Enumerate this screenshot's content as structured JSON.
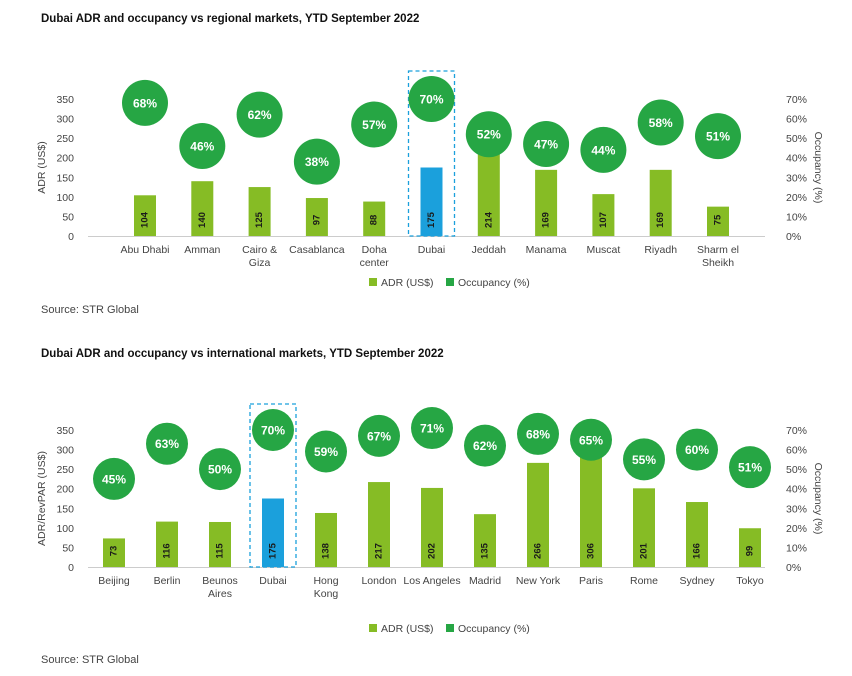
{
  "colors": {
    "adr": "#86bc25",
    "dubai": "#1ba0dc",
    "occupancy": "#26a644",
    "highlight_box": "#1ba0dc",
    "baseline": "#cccccc"
  },
  "legend": {
    "adr": "ADR (US$)",
    "occupancy": "Occupancy (%)"
  },
  "chart_data": [
    {
      "type": "bar",
      "title": "Dubai ADR and occupancy vs regional markets, YTD September 2022",
      "source": "Source: STR Global",
      "ylabel": "ADR (US$)",
      "y2label": "Occupancy (%)",
      "ylim": [
        0,
        350
      ],
      "yticks": [
        "0",
        "50",
        "100",
        "150",
        "200",
        "250",
        "300",
        "350"
      ],
      "y2lim": [
        0,
        70
      ],
      "y2ticks": [
        "0%",
        "10%",
        "20%",
        "30%",
        "40%",
        "50%",
        "60%",
        "70%"
      ],
      "highlight": "Dubai",
      "categories": [
        "Abu Dhabi",
        "Amman",
        "Cairo & Giza",
        "Casablanca",
        "Doha center",
        "Dubai",
        "Jeddah",
        "Manama",
        "Muscat",
        "Riyadh",
        "Sharm el Sheikh"
      ],
      "category_lines": [
        [
          "Abu Dhabi"
        ],
        [
          "Amman"
        ],
        [
          "Cairo &",
          "Giza"
        ],
        [
          "Casablanca"
        ],
        [
          "Doha",
          "center"
        ],
        [
          "Dubai"
        ],
        [
          "Jeddah"
        ],
        [
          "Manama"
        ],
        [
          "Muscat"
        ],
        [
          "Riyadh"
        ],
        [
          "Sharm el",
          "Sheikh"
        ]
      ],
      "series": [
        {
          "name": "ADR (US$)",
          "values": [
            104,
            140,
            125,
            97,
            88,
            175,
            214,
            169,
            107,
            169,
            75
          ]
        },
        {
          "name": "Occupancy (%)",
          "values": [
            68,
            46,
            62,
            38,
            57,
            70,
            52,
            47,
            44,
            58,
            51
          ]
        }
      ],
      "bar_labels": [
        "104",
        "140",
        "125",
        "97",
        "88",
        "175",
        "214",
        "169",
        "107",
        "169",
        "75"
      ],
      "occupancy_labels": [
        "68%",
        "46%",
        "62%",
        "38%",
        "57%",
        "70%",
        "52%",
        "47%",
        "44%",
        "58%",
        "51%"
      ]
    },
    {
      "type": "bar",
      "title": "Dubai ADR and occupancy vs international markets, YTD September 2022",
      "source": "Source: STR Global",
      "ylabel": "ADR/RevPAR (US$)",
      "y2label": "Occupancy (%)",
      "ylim": [
        0,
        350
      ],
      "yticks": [
        "0",
        "50",
        "100",
        "150",
        "200",
        "250",
        "300",
        "350"
      ],
      "y2lim": [
        0,
        70
      ],
      "y2ticks": [
        "0%",
        "10%",
        "20%",
        "30%",
        "40%",
        "50%",
        "60%",
        "70%"
      ],
      "highlight": "Dubai",
      "categories": [
        "Beijing",
        "Berlin",
        "Beunos Aires",
        "Dubai",
        "Hong Kong",
        "London",
        "Los Angeles",
        "Madrid",
        "New York",
        "Paris",
        "Rome",
        "Sydney",
        "Tokyo"
      ],
      "category_lines": [
        [
          "Beijing"
        ],
        [
          "Berlin"
        ],
        [
          "Beunos",
          "Aires"
        ],
        [
          "Dubai"
        ],
        [
          "Hong",
          "Kong"
        ],
        [
          "London"
        ],
        [
          "Los Angeles"
        ],
        [
          "Madrid"
        ],
        [
          "New York"
        ],
        [
          "Paris"
        ],
        [
          "Rome"
        ],
        [
          "Sydney"
        ],
        [
          "Tokyo"
        ]
      ],
      "series": [
        {
          "name": "ADR (US$)",
          "values": [
            73,
            116,
            115,
            175,
            138,
            217,
            202,
            135,
            266,
            306,
            201,
            166,
            99
          ]
        },
        {
          "name": "Occupancy (%)",
          "values": [
            45,
            63,
            50,
            70,
            59,
            67,
            71,
            62,
            68,
            65,
            55,
            60,
            51
          ]
        }
      ],
      "bar_labels": [
        "73",
        "116",
        "115",
        "175",
        "138",
        "217",
        "202",
        "135",
        "266",
        "306",
        "201",
        "166",
        "99"
      ],
      "occupancy_labels": [
        "45%",
        "63%",
        "50%",
        "70%",
        "59%",
        "67%",
        "71%",
        "62%",
        "68%",
        "65%",
        "55%",
        "60%",
        "51%"
      ]
    }
  ]
}
